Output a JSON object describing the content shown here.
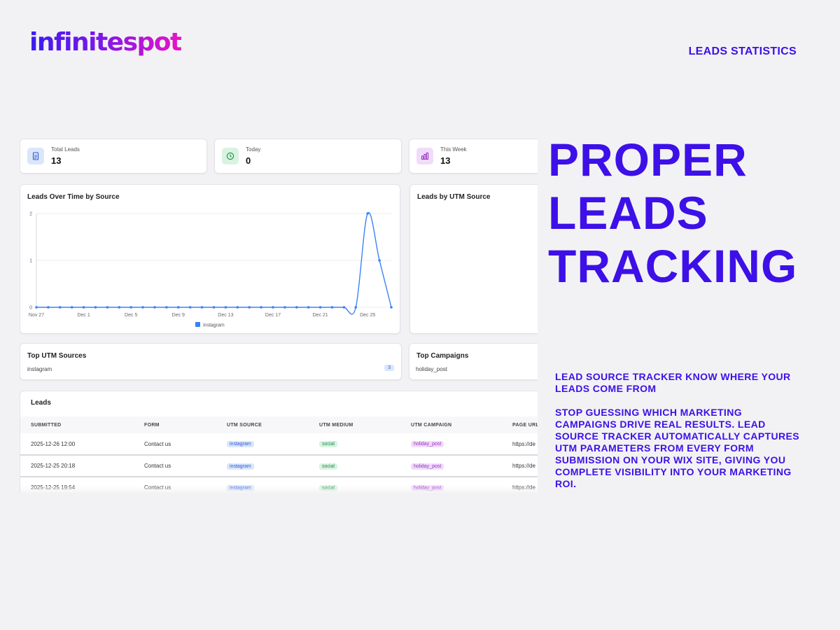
{
  "brand": {
    "name": "infinitespot"
  },
  "header": {
    "label": "LEADS STATISTICS"
  },
  "stats": [
    {
      "label": "Total Leads",
      "value": "13",
      "icon": "document-icon",
      "color": "#2a5bd7",
      "bg": "#dbe6fb"
    },
    {
      "label": "Today",
      "value": "0",
      "icon": "clock-icon",
      "color": "#1f8a47",
      "bg": "#d9f3e1"
    },
    {
      "label": "This Week",
      "value": "13",
      "icon": "bar-chart-icon",
      "color": "#9a2fc9",
      "bg": "#f0dcfa"
    }
  ],
  "charts": {
    "leads_over_time_title": "Leads Over Time by Source",
    "utm_source_title": "Leads by UTM Source"
  },
  "chart_data": {
    "type": "line",
    "title": "Leads Over Time by Source",
    "xlabel": "",
    "ylabel": "",
    "x_ticks": [
      "Nov 27",
      "Dec 1",
      "Dec 5",
      "Dec 9",
      "Dec 13",
      "Dec 17",
      "Dec 21",
      "Dec 25"
    ],
    "y_ticks": [
      0,
      1,
      2
    ],
    "ylim": [
      0,
      2
    ],
    "x": [
      "Nov 27",
      "Nov 28",
      "Nov 29",
      "Nov 30",
      "Dec 1",
      "Dec 2",
      "Dec 3",
      "Dec 4",
      "Dec 5",
      "Dec 6",
      "Dec 7",
      "Dec 8",
      "Dec 9",
      "Dec 10",
      "Dec 11",
      "Dec 12",
      "Dec 13",
      "Dec 14",
      "Dec 15",
      "Dec 16",
      "Dec 17",
      "Dec 18",
      "Dec 19",
      "Dec 20",
      "Dec 21",
      "Dec 22",
      "Dec 23",
      "Dec 24",
      "Dec 25",
      "Dec 26",
      "Dec 27"
    ],
    "series": [
      {
        "name": "instagram",
        "color": "#3b82f6",
        "values": [
          0,
          0,
          0,
          0,
          0,
          0,
          0,
          0,
          0,
          0,
          0,
          0,
          0,
          0,
          0,
          0,
          0,
          0,
          0,
          0,
          0,
          0,
          0,
          0,
          0,
          0,
          0,
          0,
          2,
          1,
          0
        ]
      }
    ],
    "grid": true,
    "legend": "bottom"
  },
  "top_sources": {
    "title": "Top UTM Sources",
    "items": [
      {
        "name": "instagram",
        "count": "3"
      }
    ]
  },
  "top_campaigns": {
    "title": "Top Campaigns",
    "items": [
      {
        "name": "holiday_post"
      }
    ]
  },
  "leads_table": {
    "title": "Leads",
    "headers": [
      "SUBMITTED",
      "FORM",
      "UTM SOURCE",
      "UTM MEDIUM",
      "UTM CAMPAIGN",
      "PAGE URL"
    ],
    "rows": [
      {
        "submitted": "2025-12-26 12:00",
        "form": "Contact us",
        "source": "instagram",
        "medium": "social",
        "campaign": "holiday_post",
        "url": "https://de"
      },
      {
        "submitted": "2025-12-25 20:18",
        "form": "Contact us",
        "source": "instagram",
        "medium": "social",
        "campaign": "holiday_post",
        "url": "https://de"
      },
      {
        "submitted": "2025-12-25 19:54",
        "form": "Contact us",
        "source": "instagram",
        "medium": "social",
        "campaign": "holiday_post",
        "url": "https://de"
      }
    ]
  },
  "marketing": {
    "headline_lines": [
      "PROPER",
      "LEADS",
      "TRACKING"
    ],
    "subhead": "LEAD SOURCE TRACKER KNOW WHERE YOUR LEADS COME FROM",
    "body": "STOP GUESSING WHICH MARKETING CAMPAIGNS DRIVE REAL RESULTS. LEAD SOURCE TRACKER AUTOMATICALLY CAPTURES UTM PARAMETERS FROM EVERY FORM SUBMISSION ON YOUR WIX SITE, GIVING YOU COMPLETE VISIBILITY INTO YOUR MARKETING ROI."
  }
}
